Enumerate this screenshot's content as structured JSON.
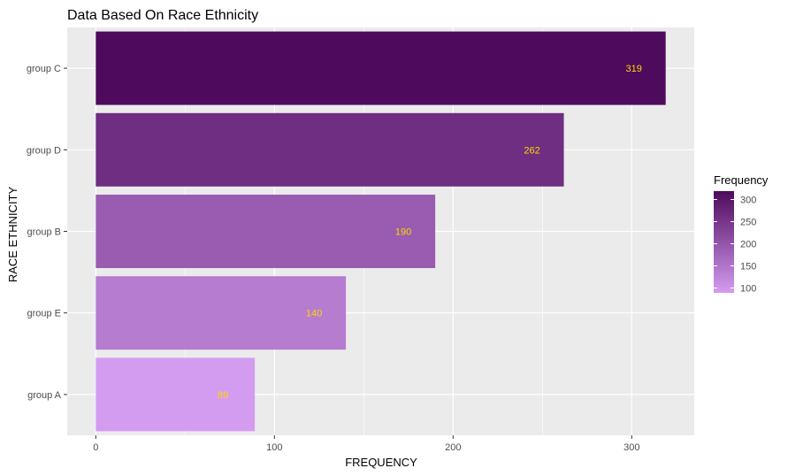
{
  "chart_data": {
    "type": "bar",
    "orientation": "horizontal",
    "title": "Data Based On Race Ethnicity",
    "xlabel": "FREQUENCY",
    "ylabel": "RACE ETHNICITY",
    "categories": [
      "group C",
      "group D",
      "group B",
      "group E",
      "group A"
    ],
    "values": [
      319,
      262,
      190,
      140,
      89
    ],
    "data_labels": [
      "319",
      "262",
      "190",
      "140",
      "89"
    ],
    "xlim": [
      -16,
      335
    ],
    "x_ticks": [
      0,
      100,
      200,
      300
    ],
    "x_tick_labels": [
      "0",
      "100",
      "200",
      "300"
    ],
    "grid": true,
    "legend": {
      "title": "Frequency",
      "position": "right",
      "type": "colorbar",
      "range": [
        89,
        319
      ],
      "ticks": [
        100,
        150,
        200,
        250,
        300
      ],
      "tick_labels": [
        "100",
        "150",
        "200",
        "250",
        "300"
      ]
    },
    "colors": {
      "low": "#D49CF1",
      "high": "#4E0A5C",
      "panel_background": "#EBEBEB",
      "grid": "#FFFFFF",
      "data_label": "#FFD700"
    }
  }
}
